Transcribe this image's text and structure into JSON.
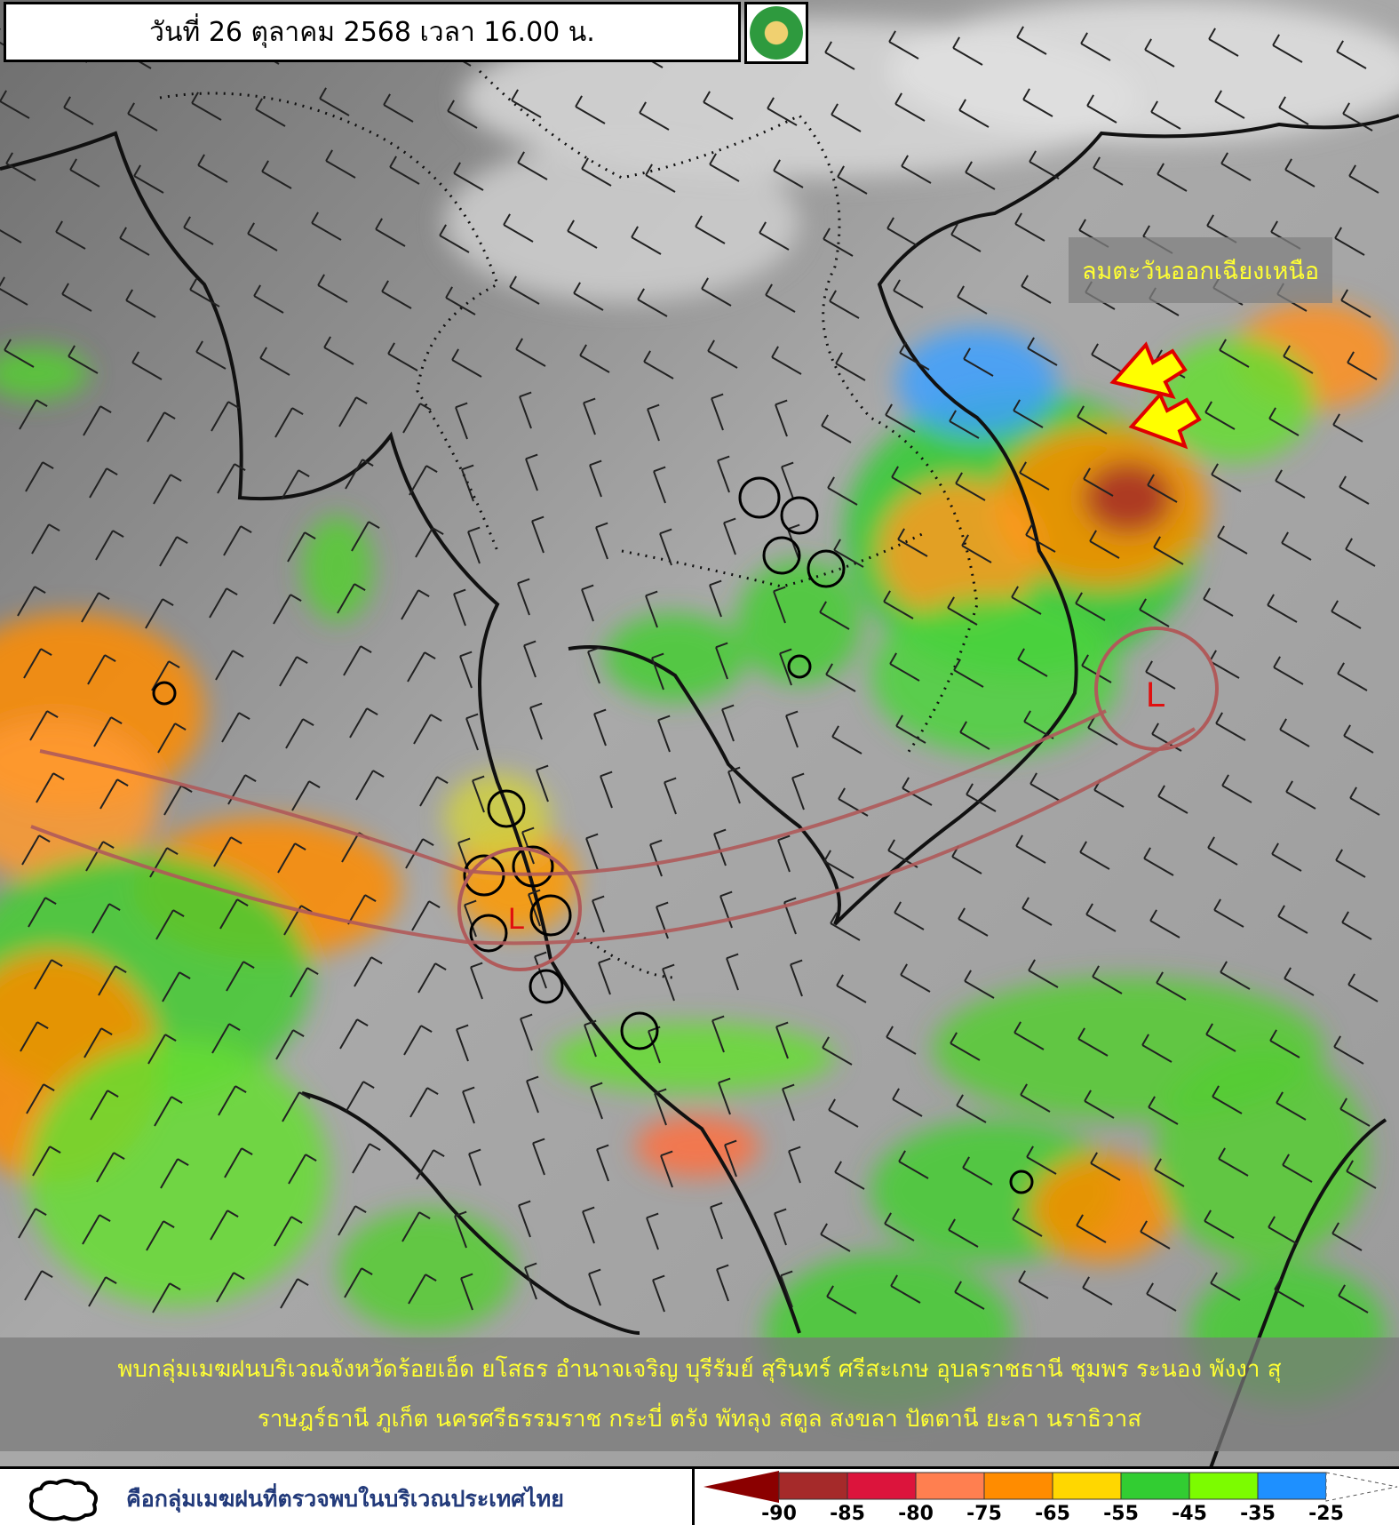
{
  "header": {
    "title": "วันที่ 26 ตุลาคม 2568 เวลา 16.00 น.",
    "logo": "thai-meteorological-department-seal"
  },
  "annotations": {
    "wind_label": "ลมตะวันออกเฉียงเหนือ",
    "low_pressure_marks": [
      "L",
      "L"
    ]
  },
  "description": {
    "line1": "พบกลุ่มเมฆฝนบริเวณจังหวัดร้อยเอ็ด ยโสธร อำนาจเจริญ บุรีรัมย์ สุรินทร์ ศรีสะเกษ อุบลราชธานี ชุมพร ระนอง พังงา สุ",
    "line2": "ราษฎร์ธานี ภูเก็ต นครศรีธรรมราช กระบี่ ตรัง พัทลุง สตูล สงขลา ปัตตานี ยะลา นราธิวาส"
  },
  "legend": {
    "cloud_icon": "cloud-outline-icon",
    "cloud_text": "คือกลุ่มเมฆฝนที่ตรวจพบในบริเวณประเทศไทย",
    "colorbar": {
      "colors": [
        "#8b0000",
        "#a52a2a",
        "#dc143c",
        "#ff7f50",
        "#ff8c00",
        "#ffd700",
        "#32cd32",
        "#7cfc00",
        "#1e90ff",
        "#ffffff"
      ],
      "labels": [
        "-90",
        "-85",
        "-80",
        "-75",
        "-65",
        "-55",
        "-45",
        "-35",
        "-25"
      ]
    }
  }
}
